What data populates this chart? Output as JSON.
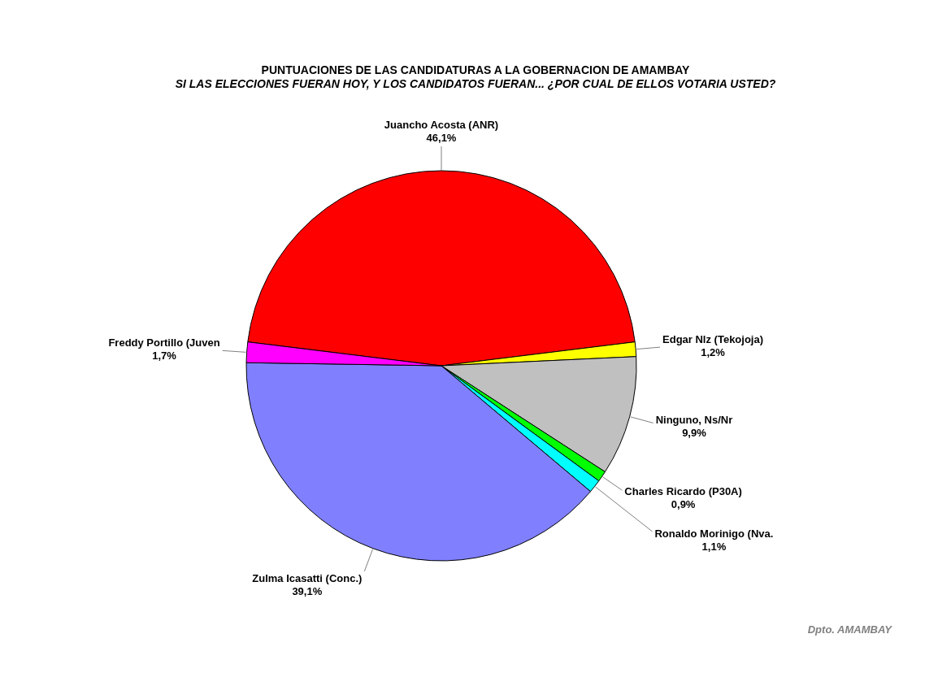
{
  "chart_data": {
    "type": "pie",
    "title": "PUNTUACIONES DE LAS CANDIDATURAS A LA GOBERNACION DE AMAMBAY",
    "subtitle": "SI LAS ELECCIONES FUERAN HOY, Y LOS CANDIDATOS FUERAN... ¿POR CUAL DE ELLOS VOTARIA USTED?",
    "categories": [
      "Juancho Acosta (ANR)",
      "Edgar Nlz (Tekojoja)",
      "Ninguno, Ns/Nr",
      "Charles Ricardo (P30A)",
      "Ronaldo Morinigo (Nva.",
      "Zulma Icasatti (Conc.)",
      "Freddy Portillo (Juven"
    ],
    "values": [
      46.1,
      1.2,
      9.9,
      0.9,
      1.1,
      39.1,
      1.7
    ],
    "colors": [
      "#ff0000",
      "#ffff00",
      "#c0c0c0",
      "#00ff00",
      "#00ffff",
      "#8080ff",
      "#ff00ff"
    ],
    "value_labels": [
      "46,1%",
      "1,2%",
      "9,9%",
      "0,9%",
      "1,1%",
      "39,1%",
      "1,7%"
    ],
    "annotations": [
      "Dpto. AMAMBAY"
    ]
  }
}
